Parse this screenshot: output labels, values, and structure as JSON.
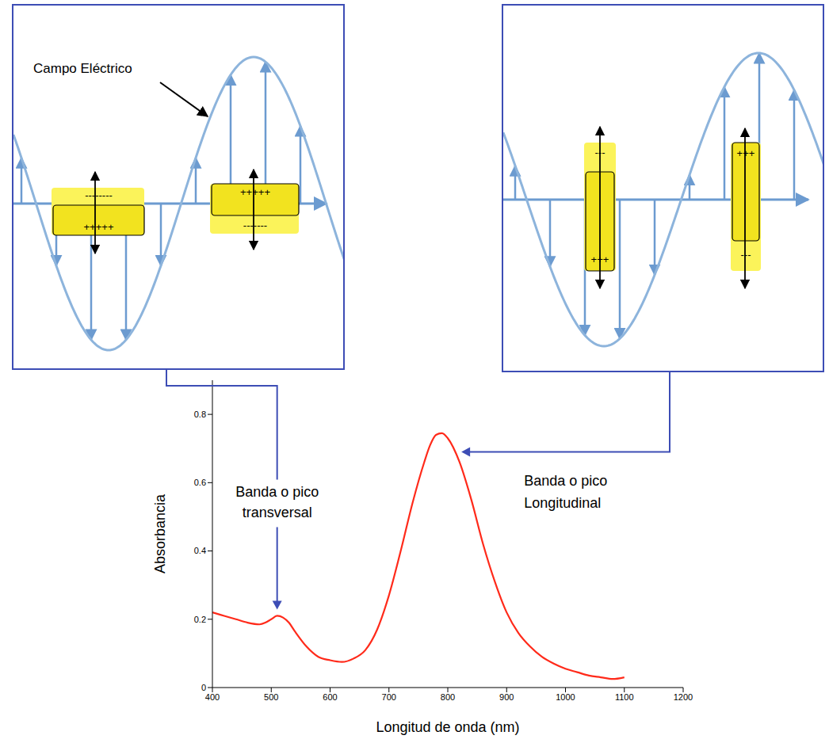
{
  "chart_data": {
    "type": "line",
    "xlabel": "Longitud de onda (nm)",
    "ylabel": "Absorbancia",
    "color": "#ff2a1a",
    "x": [
      400,
      420,
      440,
      460,
      480,
      490,
      500,
      510,
      520,
      530,
      540,
      560,
      580,
      600,
      620,
      640,
      660,
      680,
      700,
      720,
      740,
      760,
      770,
      780,
      790,
      800,
      820,
      840,
      860,
      880,
      900,
      920,
      940,
      960,
      980,
      1000,
      1020,
      1040,
      1060,
      1080,
      1100
    ],
    "values": [
      0.22,
      0.21,
      0.2,
      0.19,
      0.185,
      0.19,
      0.2,
      0.21,
      0.205,
      0.19,
      0.165,
      0.12,
      0.09,
      0.08,
      0.075,
      0.085,
      0.11,
      0.17,
      0.27,
      0.4,
      0.54,
      0.66,
      0.71,
      0.74,
      0.745,
      0.73,
      0.66,
      0.55,
      0.42,
      0.31,
      0.22,
      0.16,
      0.12,
      0.09,
      0.07,
      0.055,
      0.045,
      0.035,
      0.03,
      0.025,
      0.03
    ],
    "xlim": [
      400,
      1200
    ],
    "xticks": [
      400,
      500,
      600,
      700,
      800,
      900,
      1000,
      1100,
      1200
    ],
    "ylim": [
      0,
      0.9
    ],
    "yticks": [
      0,
      0.2,
      0.4,
      0.6,
      0.8
    ],
    "annotations": [
      {
        "text": "Banda o pico transversal",
        "x": 510,
        "y": 0.21
      },
      {
        "text": "Banda o pico Longitudinal",
        "x": 815,
        "y": 0.69
      }
    ]
  },
  "diagrams": {
    "left_panel": {
      "label": "Campo Eléctrico",
      "dipoles": [
        {
          "top": "--------",
          "bottom": "+++++"
        },
        {
          "top": "+++++",
          "bottom": "-------"
        }
      ]
    },
    "right_panel": {
      "dipoles": [
        {
          "top": "---",
          "bottom": "+++"
        },
        {
          "top": "+++",
          "bottom": "---"
        }
      ]
    }
  }
}
